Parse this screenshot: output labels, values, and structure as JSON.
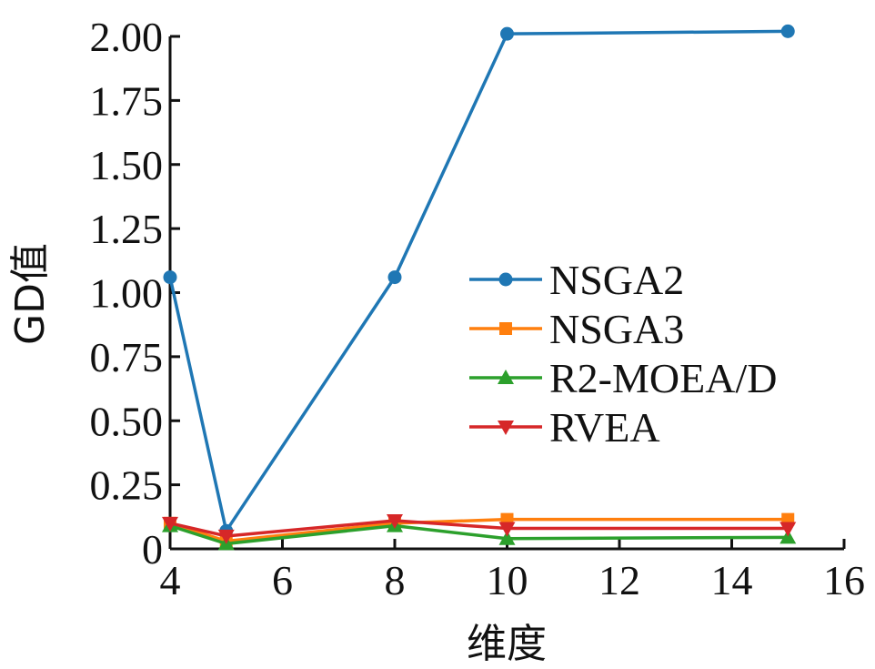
{
  "chart_data": {
    "type": "line",
    "title": "",
    "xlabel": "维度",
    "ylabel": "GD值",
    "xlim": [
      4,
      16
    ],
    "ylim": [
      0,
      2.0
    ],
    "xticks": [
      "4",
      "6",
      "8",
      "10",
      "12",
      "14",
      "16"
    ],
    "yticks": [
      "0",
      "0.25",
      "0.50",
      "0.75",
      "1.00",
      "1.25",
      "1.50",
      "1.75",
      "2.00"
    ],
    "grid": false,
    "legend_position": "right",
    "series": [
      {
        "name": "NSGA2",
        "color": "#1f77b4",
        "marker": "circle",
        "x": [
          4,
          5,
          8,
          10,
          15
        ],
        "y": [
          1.06,
          0.07,
          1.06,
          2.01,
          2.02
        ]
      },
      {
        "name": "NSGA3",
        "color": "#ff7f0e",
        "marker": "square",
        "x": [
          4,
          5,
          8,
          10,
          15
        ],
        "y": [
          0.1,
          0.03,
          0.1,
          0.115,
          0.115
        ]
      },
      {
        "name": "R2-MOEA/D",
        "color": "#2ca02c",
        "marker": "triangle-up",
        "x": [
          4,
          5,
          8,
          10,
          15
        ],
        "y": [
          0.09,
          0.02,
          0.09,
          0.04,
          0.045
        ]
      },
      {
        "name": "RVEA",
        "color": "#d62728",
        "marker": "triangle-down",
        "x": [
          4,
          5,
          8,
          10,
          15
        ],
        "y": [
          0.1,
          0.05,
          0.11,
          0.08,
          0.08
        ]
      }
    ]
  }
}
